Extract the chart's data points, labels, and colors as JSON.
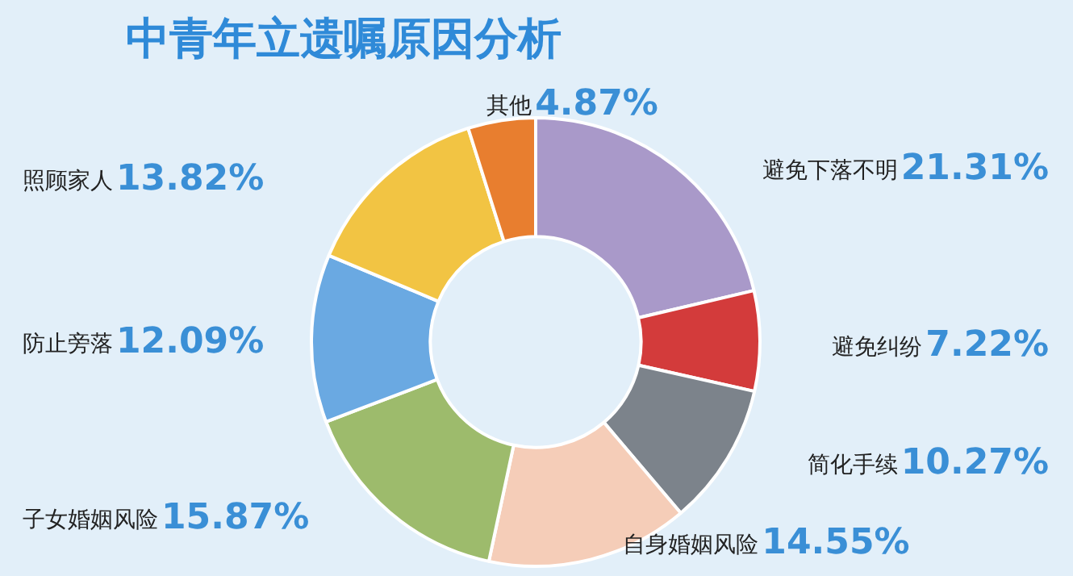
{
  "chart_data": {
    "type": "donut",
    "title": "中青年立遗嘱原因分析",
    "categories": [
      "避免下落不明",
      "避免纠纷",
      "简化手续",
      "自身婚姻风险",
      "子女婚姻风险",
      "防止旁落",
      "照顾家人",
      "其他"
    ],
    "values": [
      21.31,
      7.22,
      10.27,
      14.55,
      15.87,
      12.09,
      13.82,
      4.87
    ],
    "colors": [
      "#a999c9",
      "#d33b3b",
      "#7c838b",
      "#f5cdb8",
      "#9dbb6c",
      "#6aa9e2",
      "#f2c443",
      "#e87e2f"
    ],
    "value_labels": [
      "21.31%",
      "7.22%",
      "10.27%",
      "14.55%",
      "15.87%",
      "12.09%",
      "13.82%",
      "4.87%"
    ],
    "legend": false
  }
}
